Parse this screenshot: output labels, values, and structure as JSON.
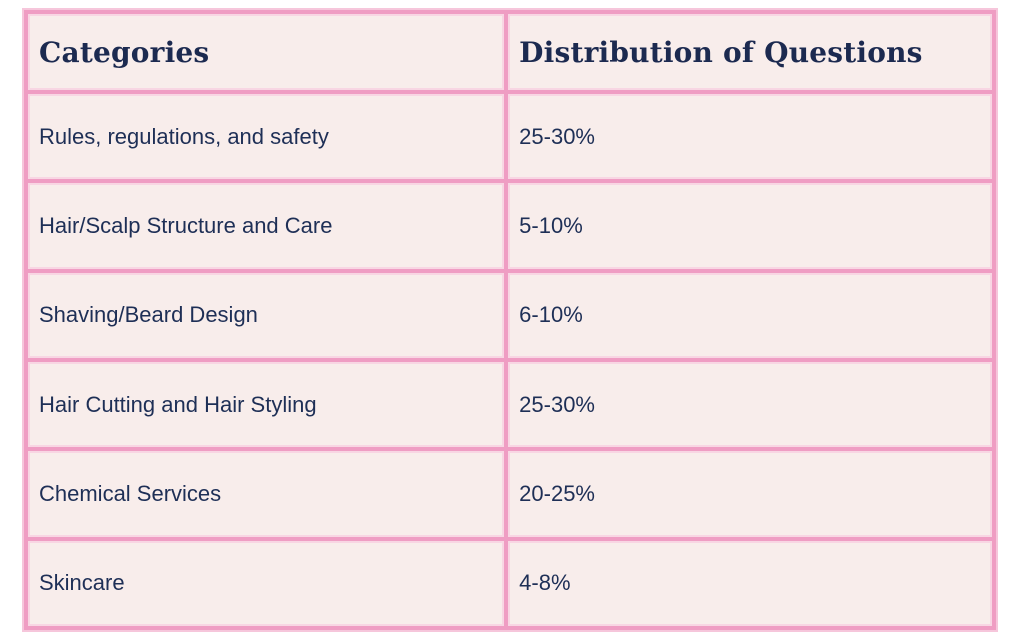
{
  "colors": {
    "page_background": "#ffffff",
    "grid_pink": "#ef9dc3",
    "grid_halo_pink": "#f8d6e3",
    "cell_background": "#f8edeb",
    "header_text": "#1c2a50",
    "body_text": "#1e2f56"
  },
  "table": {
    "headers": [
      "Categories",
      "Distribution of Questions"
    ],
    "rows": [
      {
        "category": "Rules, regulations, and safety",
        "distribution": "25-30%"
      },
      {
        "category": "Hair/Scalp Structure and Care",
        "distribution": "5-10%"
      },
      {
        "category": "Shaving/Beard Design",
        "distribution": "6-10%"
      },
      {
        "category": "Hair Cutting and Hair Styling",
        "distribution": "25-30%"
      },
      {
        "category": "Chemical Services",
        "distribution": "20-25%"
      },
      {
        "category": "Skincare",
        "distribution": "4-8%"
      }
    ]
  },
  "chart_data": {
    "type": "table",
    "title": "",
    "columns": [
      "Categories",
      "Distribution of Questions"
    ],
    "rows": [
      [
        "Rules, regulations, and safety",
        "25-30%"
      ],
      [
        "Hair/Scalp Structure and Care",
        "5-10%"
      ],
      [
        "Shaving/Beard Design",
        "6-10%"
      ],
      [
        "Hair Cutting and Hair Styling",
        "25-30%"
      ],
      [
        "Chemical Services",
        "20-25%"
      ],
      [
        "Skincare",
        "4-8%"
      ]
    ]
  }
}
